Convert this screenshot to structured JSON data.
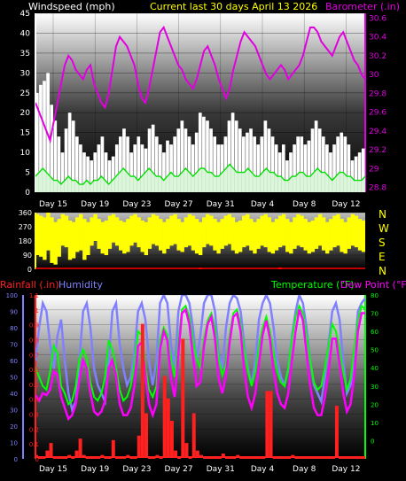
{
  "colors": {
    "windspeed": "#ffffff",
    "gust": "#ffffff",
    "wind_avg": "#00e000",
    "barometer": "#e000e0",
    "wind_dir": "#ffff00",
    "wind_calm": "#ff0000",
    "rainfall": "#ff2020",
    "humidity": "#8080ff",
    "temperature": "#00ff00",
    "dew_point": "#ff00ff",
    "title": "#ffff00",
    "axis_text": "#ffffff"
  },
  "header": {
    "windspeed_label": "Windspeed (mph)",
    "title": "Current last 30 days April 13 2026",
    "barometer_label": "Barometer (.in)"
  },
  "compass": [
    "N",
    "W",
    "S",
    "E",
    "N"
  ],
  "footer": {
    "rainfall_label": "Rainfall (.in)",
    "humidity_label": "Humidity",
    "temperature_label": "Temperature (°F)",
    "dewpoint_label": "Dew Point (°F)"
  },
  "chart_data": [
    {
      "type": "line",
      "panel": "wind_barometer",
      "x_ticks": [
        "Day 15",
        "Day 19",
        "Day 23",
        "Day 27",
        "Day 31",
        "Day 4",
        "Day 8",
        "Day 12"
      ],
      "y_left": {
        "label": "Windspeed (mph)",
        "ylim": [
          0,
          45
        ],
        "ticks": [
          0,
          5,
          10,
          15,
          20,
          25,
          30,
          35,
          40,
          45
        ]
      },
      "y_right": {
        "label": "Barometer (.in)",
        "ylim": [
          28.75,
          30.65
        ],
        "ticks": [
          "28.8",
          "29",
          "29.2",
          "29.4",
          "29.6",
          "29.8",
          "30",
          "30.2",
          "30.4",
          "30.6"
        ]
      },
      "series": [
        {
          "key": "gust",
          "style": "bars",
          "values": [
            25,
            27,
            28,
            30,
            22,
            18,
            14,
            10,
            16,
            20,
            18,
            14,
            12,
            10,
            9,
            8,
            10,
            12,
            14,
            10,
            8,
            9,
            12,
            14,
            16,
            14,
            10,
            12,
            14,
            12,
            11,
            16,
            17,
            14,
            12,
            10,
            13,
            12,
            14,
            16,
            18,
            16,
            14,
            12,
            15,
            20,
            19,
            18,
            16,
            14,
            12,
            12,
            14,
            18,
            20,
            18,
            16,
            14,
            15,
            16,
            14,
            12,
            14,
            18,
            16,
            14,
            12,
            10,
            12,
            8,
            10,
            12,
            14,
            14,
            12,
            13,
            16,
            18,
            16,
            14,
            12,
            10,
            12,
            14,
            15,
            14,
            12,
            8,
            9,
            10,
            11
          ]
        },
        {
          "key": "wind_avg",
          "style": "line",
          "values": [
            4,
            5,
            6,
            5,
            4,
            3,
            3,
            2,
            3,
            4,
            3,
            3,
            2,
            2,
            3,
            2,
            3,
            3,
            4,
            3,
            2,
            3,
            4,
            5,
            6,
            5,
            4,
            4,
            3,
            4,
            5,
            6,
            5,
            4,
            4,
            3,
            4,
            5,
            4,
            4,
            5,
            6,
            5,
            4,
            5,
            6,
            6,
            5,
            5,
            4,
            4,
            5,
            6,
            7,
            6,
            5,
            5,
            5,
            6,
            5,
            4,
            4,
            5,
            6,
            5,
            5,
            4,
            4,
            3,
            3,
            4,
            4,
            5,
            5,
            4,
            4,
            5,
            6,
            5,
            5,
            4,
            3,
            4,
            5,
            5,
            4,
            4,
            3,
            3,
            3,
            4
          ]
        },
        {
          "key": "barometer",
          "style": "line",
          "values": [
            29.7,
            29.6,
            29.5,
            29.4,
            29.3,
            29.5,
            29.7,
            29.9,
            30.1,
            30.2,
            30.15,
            30.05,
            30.0,
            29.95,
            30.05,
            30.1,
            29.9,
            29.8,
            29.7,
            29.65,
            29.8,
            30.05,
            30.3,
            30.4,
            30.35,
            30.3,
            30.2,
            30.1,
            29.9,
            29.75,
            29.7,
            29.85,
            30.05,
            30.25,
            30.45,
            30.5,
            30.4,
            30.3,
            30.2,
            30.1,
            30.05,
            29.95,
            29.9,
            29.85,
            29.95,
            30.1,
            30.25,
            30.3,
            30.2,
            30.1,
            29.95,
            29.85,
            29.75,
            29.85,
            30.05,
            30.2,
            30.35,
            30.45,
            30.4,
            30.35,
            30.3,
            30.2,
            30.1,
            30.0,
            29.95,
            30.0,
            30.05,
            30.1,
            30.05,
            29.95,
            30.0,
            30.05,
            30.1,
            30.2,
            30.35,
            30.5,
            30.5,
            30.45,
            30.35,
            30.3,
            30.25,
            30.2,
            30.3,
            30.4,
            30.45,
            30.35,
            30.25,
            30.15,
            30.1,
            30.0,
            29.95
          ]
        }
      ]
    },
    {
      "type": "bar",
      "panel": "wind_direction",
      "ylim": [
        0,
        360
      ],
      "y_ticks": [
        0,
        90,
        180,
        270,
        360
      ],
      "series": [
        {
          "key": "wind_dir",
          "band_low": [
            90,
            80,
            60,
            120,
            40,
            30,
            80,
            150,
            140,
            60,
            70,
            110,
            120,
            60,
            90,
            150,
            180,
            130,
            100,
            90,
            130,
            170,
            150,
            120,
            100,
            110,
            150,
            170,
            140,
            110,
            90,
            130,
            160,
            150,
            120,
            100,
            130,
            150,
            160,
            120,
            110,
            140,
            150,
            120,
            100,
            90,
            140,
            160,
            150,
            120,
            100,
            130,
            150,
            160,
            120,
            100,
            110,
            140,
            150,
            120,
            100,
            130,
            150,
            140,
            110,
            100,
            120,
            140,
            150,
            110,
            100,
            130,
            150,
            140,
            120,
            100,
            110,
            130,
            150,
            120,
            100,
            120,
            140,
            150,
            110,
            100,
            130,
            150,
            140,
            120,
            110
          ],
          "band_high": [
            350,
            340,
            330,
            360,
            330,
            300,
            320,
            350,
            340,
            310,
            300,
            330,
            350,
            320,
            300,
            330,
            350,
            320,
            300,
            310,
            340,
            350,
            330,
            310,
            300,
            320,
            340,
            350,
            330,
            310,
            300,
            330,
            350,
            340,
            320,
            300,
            320,
            340,
            350,
            320,
            300,
            330,
            350,
            340,
            320,
            300,
            330,
            350,
            340,
            320,
            300,
            320,
            340,
            350,
            330,
            300,
            310,
            340,
            350,
            320,
            300,
            320,
            340,
            350,
            330,
            300,
            320,
            340,
            350,
            320,
            300,
            330,
            350,
            340,
            320,
            300,
            310,
            330,
            350,
            330,
            300,
            320,
            340,
            350,
            320,
            300,
            330,
            350,
            340,
            320,
            310
          ]
        },
        {
          "key": "wind_calm",
          "values": [
            0,
            0,
            0,
            0,
            0,
            0,
            0,
            0,
            0,
            0,
            0,
            0,
            0,
            0,
            0,
            0,
            0,
            0,
            0,
            0,
            0,
            0,
            0,
            0,
            0,
            0,
            0,
            0,
            0,
            0,
            0,
            0,
            0,
            0,
            0,
            0,
            0,
            0,
            0,
            0,
            0,
            0,
            0,
            0,
            0,
            10,
            0,
            0,
            0,
            0,
            0,
            0,
            0,
            0,
            0,
            0,
            0,
            0,
            0,
            0,
            0,
            0,
            0,
            0,
            0,
            0,
            0,
            12,
            0,
            0,
            0,
            0,
            0,
            0,
            0,
            0,
            0,
            0,
            0,
            0,
            0,
            0,
            0,
            0,
            0,
            0,
            0,
            0,
            0,
            0,
            0
          ]
        }
      ]
    },
    {
      "type": "line",
      "panel": "rain_humidity_temp",
      "y_left_rain": {
        "label": "Rainfall (.in)",
        "ylim": [
          0,
          1.1
        ],
        "ticks": [
          "0",
          "0.1",
          "0.2",
          "0.3",
          "0.4",
          "0.5",
          "0.6",
          "0.7",
          "0.8",
          "0.9",
          "1",
          "1.1"
        ]
      },
      "y_left_humidity": {
        "label": "Humidity",
        "ylim": [
          0,
          100
        ],
        "ticks": [
          "0",
          "10",
          "20",
          "30",
          "40",
          "50",
          "60",
          "70",
          "80",
          "90",
          "100"
        ]
      },
      "y_right": {
        "label": "Temperature (°F)",
        "ylim": [
          -10,
          80
        ],
        "ticks": [
          "0",
          "10",
          "20",
          "30",
          "40",
          "50",
          "60",
          "70",
          "80"
        ]
      },
      "series": [
        {
          "key": "humidity",
          "values": [
            60,
            80,
            95,
            90,
            70,
            55,
            75,
            85,
            60,
            40,
            30,
            35,
            60,
            90,
            95,
            80,
            55,
            45,
            40,
            35,
            60,
            90,
            95,
            70,
            55,
            45,
            50,
            65,
            90,
            95,
            85,
            60,
            45,
            60,
            95,
            100,
            95,
            70,
            55,
            90,
            100,
            100,
            95,
            80,
            60,
            75,
            95,
            100,
            100,
            90,
            65,
            55,
            80,
            95,
            100,
            98,
            90,
            70,
            55,
            45,
            60,
            85,
            95,
            100,
            95,
            80,
            60,
            50,
            45,
            55,
            75,
            90,
            100,
            95,
            80,
            60,
            45,
            40,
            35,
            50,
            70,
            90,
            95,
            85,
            60,
            40,
            45,
            60,
            90,
            95,
            98
          ]
        },
        {
          "key": "temperature",
          "values": [
            40,
            35,
            30,
            28,
            38,
            52,
            48,
            30,
            26,
            20,
            22,
            30,
            45,
            50,
            45,
            32,
            24,
            22,
            26,
            35,
            55,
            50,
            40,
            28,
            22,
            24,
            30,
            42,
            60,
            58,
            40,
            28,
            24,
            30,
            55,
            62,
            58,
            45,
            35,
            55,
            72,
            74,
            68,
            55,
            45,
            40,
            56,
            66,
            70,
            62,
            45,
            36,
            42,
            58,
            70,
            72,
            64,
            50,
            38,
            30,
            38,
            52,
            62,
            68,
            60,
            48,
            38,
            32,
            30,
            40,
            56,
            68,
            74,
            70,
            58,
            44,
            32,
            28,
            30,
            40,
            52,
            64,
            60,
            50,
            38,
            28,
            34,
            50,
            66,
            74,
            72
          ]
        },
        {
          "key": "dew_point",
          "values": [
            25,
            22,
            26,
            25,
            28,
            38,
            36,
            24,
            18,
            12,
            14,
            20,
            34,
            44,
            40,
            26,
            16,
            14,
            16,
            22,
            40,
            44,
            36,
            20,
            14,
            14,
            18,
            30,
            52,
            54,
            36,
            20,
            14,
            20,
            50,
            60,
            55,
            34,
            24,
            48,
            70,
            72,
            64,
            46,
            30,
            32,
            52,
            64,
            68,
            56,
            34,
            26,
            36,
            54,
            68,
            70,
            60,
            38,
            24,
            18,
            26,
            42,
            58,
            66,
            56,
            38,
            26,
            20,
            18,
            26,
            44,
            60,
            72,
            66,
            48,
            30,
            18,
            14,
            14,
            24,
            38,
            56,
            56,
            42,
            26,
            16,
            20,
            36,
            60,
            70,
            70
          ]
        },
        {
          "key": "rainfall",
          "values": [
            0.02,
            0.0,
            0.0,
            0.05,
            0.1,
            0.0,
            0.0,
            0.0,
            0.0,
            0.02,
            0.0,
            0.05,
            0.13,
            0.02,
            0.0,
            0.0,
            0.0,
            0.0,
            0.02,
            0.0,
            0.0,
            0.12,
            0.0,
            0.0,
            0.0,
            0.02,
            0.0,
            0.0,
            0.15,
            0.9,
            0.3,
            0.0,
            0.0,
            0.02,
            0.0,
            0.55,
            0.4,
            0.25,
            0.05,
            0.0,
            0.8,
            0.1,
            0.0,
            0.3,
            0.05,
            0.02,
            0.0,
            0.0,
            0.0,
            0.0,
            0.0,
            0.03,
            0.0,
            0.0,
            0.0,
            0.02,
            0.0,
            0.0,
            0.0,
            0.0,
            0.0,
            0.0,
            0.0,
            0.45,
            0.45,
            0.0,
            0.0,
            0.0,
            0.0,
            0.0,
            0.02,
            0.0,
            0.0,
            0.0,
            0.0,
            0.0,
            0.0,
            0.0,
            0.0,
            0.0,
            0.0,
            0.0,
            0.35,
            0.0,
            0.0,
            0.0,
            0.0,
            0.0,
            0.0,
            0.0,
            0.0
          ]
        }
      ]
    }
  ]
}
